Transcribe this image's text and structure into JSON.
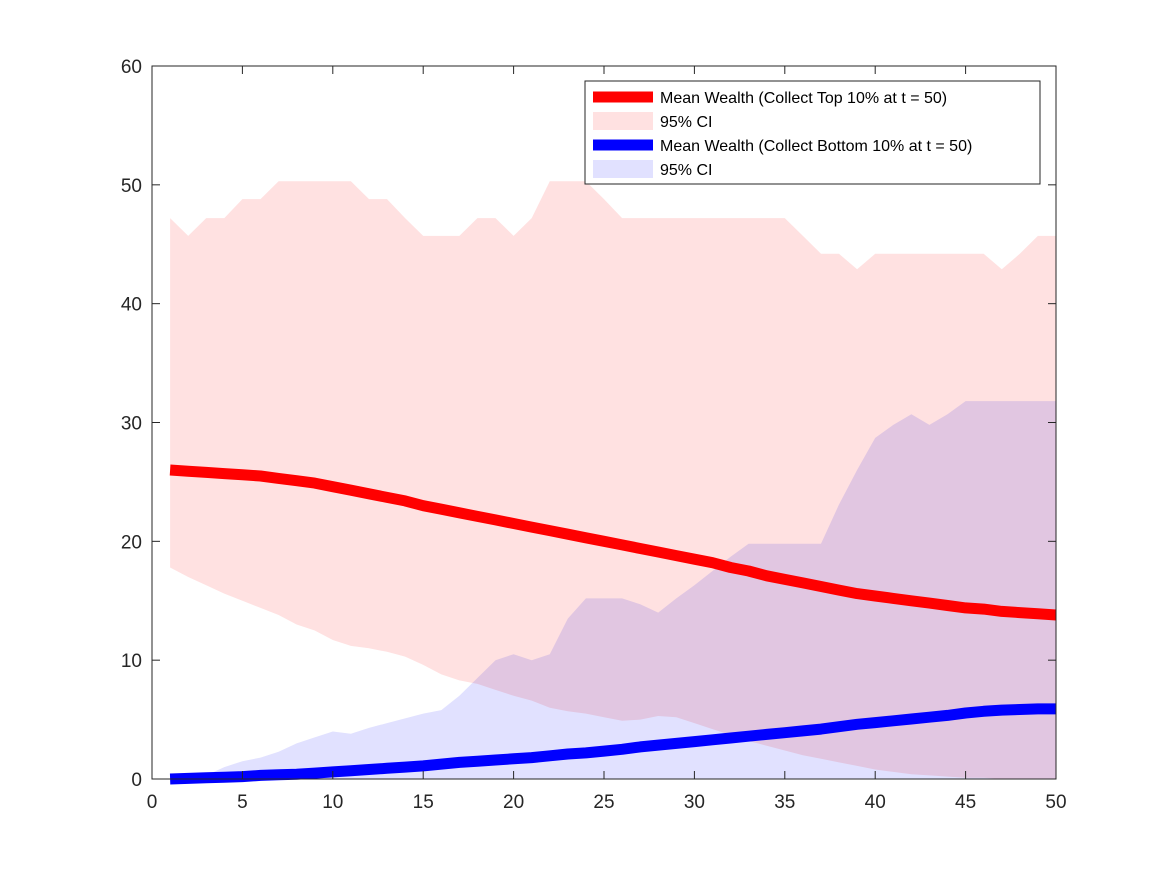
{
  "chart_data": {
    "type": "area",
    "x": [
      1,
      2,
      3,
      4,
      5,
      6,
      7,
      8,
      9,
      10,
      11,
      12,
      13,
      14,
      15,
      16,
      17,
      18,
      19,
      20,
      21,
      22,
      23,
      24,
      25,
      26,
      27,
      28,
      29,
      30,
      31,
      32,
      33,
      34,
      35,
      36,
      37,
      38,
      39,
      40,
      41,
      42,
      43,
      44,
      45,
      46,
      47,
      48,
      49,
      50
    ],
    "xlim": [
      0,
      50
    ],
    "ylim": [
      0,
      60
    ],
    "xticks": [
      "0",
      "5",
      "10",
      "15",
      "20",
      "25",
      "30",
      "35",
      "40",
      "45",
      "50"
    ],
    "yticks": [
      "0",
      "10",
      "20",
      "30",
      "40",
      "50",
      "60"
    ],
    "grid": false,
    "legend_position": "top-right",
    "series": [
      {
        "name": "Mean Wealth (Collect Top 10% at t = 50)",
        "kind": "line",
        "color": "#ff0000",
        "values": [
          26.0,
          25.9,
          25.8,
          25.7,
          25.6,
          25.5,
          25.3,
          25.1,
          24.9,
          24.6,
          24.3,
          24.0,
          23.7,
          23.4,
          23.0,
          22.7,
          22.4,
          22.1,
          21.8,
          21.5,
          21.2,
          20.9,
          20.6,
          20.3,
          20.0,
          19.7,
          19.4,
          19.1,
          18.8,
          18.5,
          18.2,
          17.8,
          17.5,
          17.1,
          16.8,
          16.5,
          16.2,
          15.9,
          15.6,
          15.4,
          15.2,
          15.0,
          14.8,
          14.6,
          14.4,
          14.3,
          14.1,
          14.0,
          13.9,
          13.8
        ]
      },
      {
        "name": "95% CI",
        "kind": "band",
        "color": "#ffe1e1",
        "lower": [
          17.8,
          17.0,
          16.3,
          15.6,
          15.0,
          14.4,
          13.8,
          13.0,
          12.5,
          11.7,
          11.2,
          11.0,
          10.7,
          10.3,
          9.6,
          8.8,
          8.3,
          8.0,
          7.5,
          7.0,
          6.6,
          6.0,
          5.7,
          5.5,
          5.2,
          4.9,
          5.0,
          5.3,
          5.2,
          4.7,
          4.2,
          3.7,
          3.2,
          2.8,
          2.4,
          2.0,
          1.7,
          1.4,
          1.1,
          0.8,
          0.6,
          0.4,
          0.3,
          0.2,
          0.1,
          0.1,
          0.0,
          0.0,
          0.0,
          0.0
        ],
        "upper": [
          47.2,
          45.7,
          47.2,
          47.2,
          48.8,
          48.8,
          50.3,
          50.3,
          50.3,
          50.3,
          50.3,
          48.8,
          48.8,
          47.2,
          45.7,
          45.7,
          45.7,
          47.2,
          47.2,
          45.7,
          47.2,
          50.3,
          50.3,
          50.3,
          48.8,
          47.2,
          47.2,
          47.2,
          47.2,
          47.2,
          47.2,
          47.2,
          47.2,
          47.2,
          47.2,
          45.7,
          44.2,
          44.2,
          42.9,
          44.2,
          44.2,
          44.2,
          44.2,
          44.2,
          44.2,
          44.2,
          42.9,
          44.2,
          45.7,
          45.7
        ]
      },
      {
        "name": "Mean Wealth (Collect Bottom 10% at t = 50)",
        "kind": "line",
        "color": "#0000ff",
        "values": [
          0.0,
          0.05,
          0.1,
          0.15,
          0.2,
          0.3,
          0.35,
          0.4,
          0.5,
          0.6,
          0.7,
          0.8,
          0.9,
          1.0,
          1.1,
          1.25,
          1.4,
          1.5,
          1.6,
          1.7,
          1.8,
          1.95,
          2.1,
          2.2,
          2.35,
          2.5,
          2.7,
          2.85,
          3.0,
          3.15,
          3.3,
          3.45,
          3.6,
          3.75,
          3.9,
          4.05,
          4.2,
          4.4,
          4.6,
          4.75,
          4.9,
          5.05,
          5.2,
          5.35,
          5.55,
          5.7,
          5.8,
          5.85,
          5.9,
          5.9
        ]
      },
      {
        "name": "95% CI",
        "kind": "band",
        "color": "#e1e1ff",
        "lower": [
          0,
          0,
          0,
          0,
          0,
          0,
          0,
          0,
          0,
          0,
          0,
          0,
          0,
          0,
          0,
          0,
          0,
          0,
          0,
          0,
          0,
          0,
          0,
          0,
          0,
          0,
          0,
          0,
          0,
          0,
          0,
          0,
          0,
          0,
          0,
          0,
          0,
          0,
          0,
          0,
          0,
          0,
          0,
          0,
          0,
          0,
          0,
          0,
          0,
          0
        ],
        "upper": [
          0.0,
          0.1,
          0.3,
          1.0,
          1.5,
          1.8,
          2.3,
          3.0,
          3.5,
          4.0,
          3.8,
          4.3,
          4.7,
          5.1,
          5.5,
          5.8,
          7.0,
          8.5,
          10.0,
          10.5,
          10.0,
          10.5,
          13.5,
          15.2,
          15.2,
          15.2,
          14.7,
          14.0,
          15.2,
          16.3,
          17.5,
          18.7,
          19.8,
          19.8,
          19.8,
          19.8,
          19.8,
          23.1,
          26.0,
          28.7,
          29.8,
          30.7,
          29.8,
          30.7,
          31.8,
          31.8,
          31.8,
          31.8,
          31.8,
          31.8
        ]
      }
    ]
  }
}
